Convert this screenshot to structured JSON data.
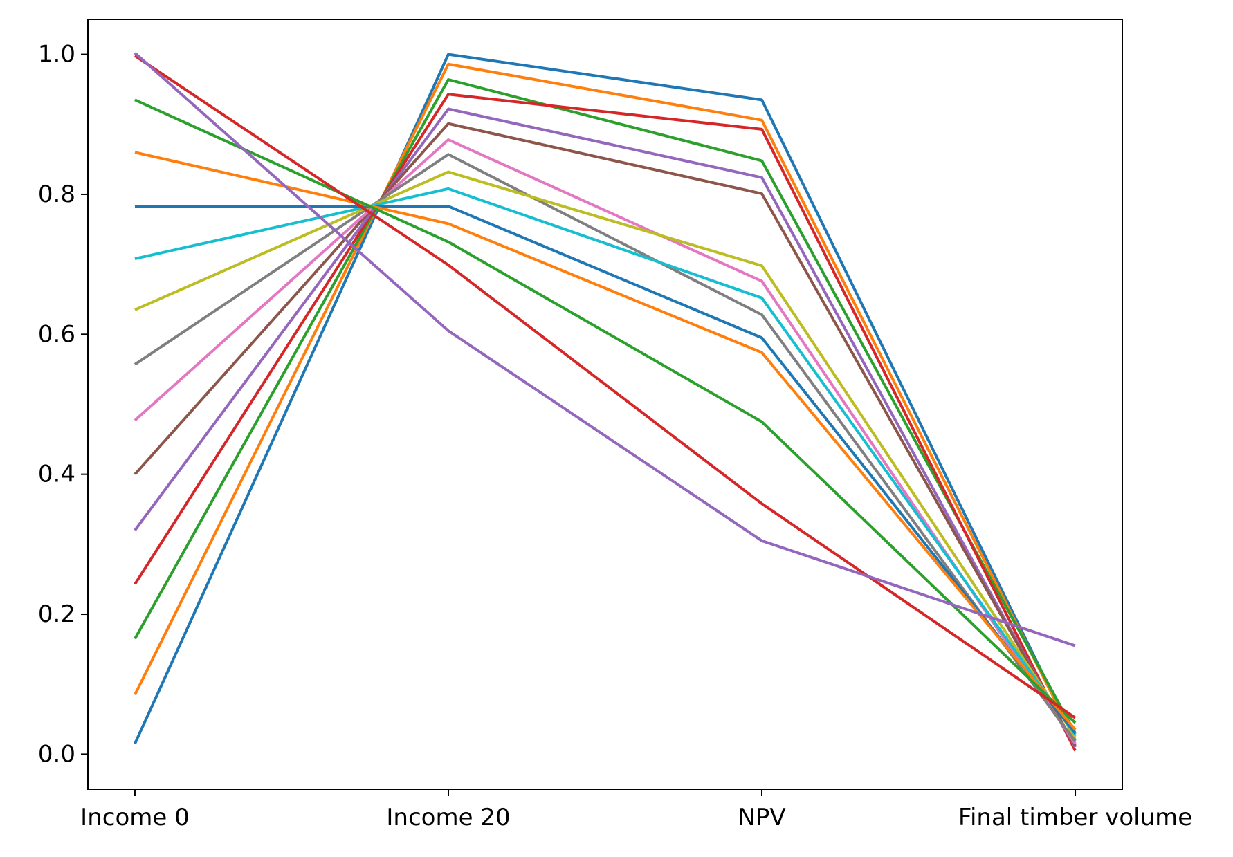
{
  "chart_data": {
    "type": "line",
    "title": "",
    "xlabel": "",
    "ylabel": "",
    "categories": [
      "Income 0",
      "Income 20",
      "NPV",
      "Final timber volume"
    ],
    "ylim": [
      -0.05,
      1.05
    ],
    "yticks": [
      0.0,
      0.2,
      0.4,
      0.6,
      0.8,
      1.0
    ],
    "ytick_labels": [
      "0.0",
      "0.2",
      "0.4",
      "0.6",
      "0.8",
      "1.0"
    ],
    "grid": false,
    "series": [
      {
        "color": "#1f77b4",
        "values": [
          0.015,
          1.0,
          0.935,
          0.02
        ]
      },
      {
        "color": "#ff7f0e",
        "values": [
          0.085,
          0.986,
          0.906,
          0.02
        ]
      },
      {
        "color": "#2ca02c",
        "values": [
          0.165,
          0.964,
          0.848,
          0.03
        ]
      },
      {
        "color": "#d62728",
        "values": [
          0.243,
          0.943,
          0.893,
          0.005
        ]
      },
      {
        "color": "#9467bd",
        "values": [
          0.32,
          0.922,
          0.824,
          0.01
        ]
      },
      {
        "color": "#8c564b",
        "values": [
          0.4,
          0.901,
          0.801,
          0.012
        ]
      },
      {
        "color": "#e377c2",
        "values": [
          0.477,
          0.878,
          0.676,
          0.015
        ]
      },
      {
        "color": "#7f7f7f",
        "values": [
          0.557,
          0.857,
          0.628,
          0.018
        ]
      },
      {
        "color": "#bcbd22",
        "values": [
          0.635,
          0.832,
          0.698,
          0.025
        ]
      },
      {
        "color": "#17becf",
        "values": [
          0.708,
          0.808,
          0.652,
          0.028
        ]
      },
      {
        "color": "#1f77b4",
        "values": [
          0.783,
          0.783,
          0.595,
          0.03
        ]
      },
      {
        "color": "#ff7f0e",
        "values": [
          0.86,
          0.758,
          0.574,
          0.035
        ]
      },
      {
        "color": "#2ca02c",
        "values": [
          0.935,
          0.732,
          0.475,
          0.045
        ]
      },
      {
        "color": "#d62728",
        "values": [
          0.998,
          0.699,
          0.358,
          0.052
        ]
      },
      {
        "color": "#9467bd",
        "values": [
          1.002,
          0.605,
          0.305,
          0.155
        ]
      }
    ]
  }
}
